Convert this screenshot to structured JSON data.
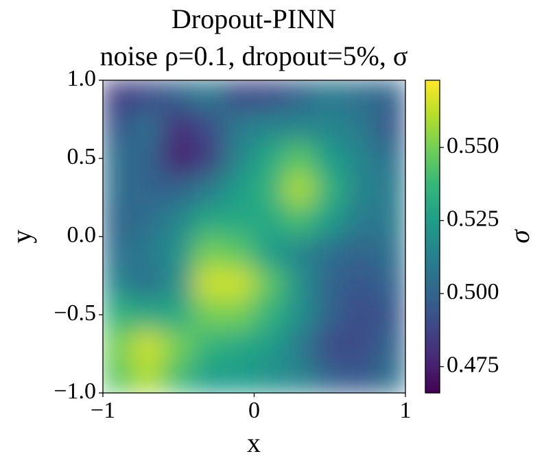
{
  "chart_data": {
    "type": "heatmap",
    "title": "Dropout-PINN",
    "subtitle": "noise ρ=0.1, dropout=5%, σ",
    "x_label": "x",
    "y_label": "y",
    "colorbar_label": "σ",
    "colormap": "viridis",
    "x": [
      -0.9,
      -0.7,
      -0.5,
      -0.3,
      -0.1,
      0.1,
      0.3,
      0.5,
      0.7,
      0.9
    ],
    "y": [
      0.9,
      0.7,
      0.5,
      0.3,
      0.1,
      -0.1,
      -0.3,
      -0.5,
      -0.7,
      -0.9
    ],
    "z": [
      [
        0.485,
        0.49,
        0.5,
        0.51,
        0.49,
        0.49,
        0.5,
        0.51,
        0.505,
        0.5
      ],
      [
        0.495,
        0.505,
        0.48,
        0.49,
        0.51,
        0.515,
        0.515,
        0.515,
        0.51,
        0.495
      ],
      [
        0.505,
        0.5,
        0.475,
        0.485,
        0.515,
        0.53,
        0.545,
        0.525,
        0.515,
        0.505
      ],
      [
        0.505,
        0.5,
        0.5,
        0.51,
        0.525,
        0.535,
        0.56,
        0.535,
        0.515,
        0.51
      ],
      [
        0.5,
        0.505,
        0.515,
        0.53,
        0.53,
        0.53,
        0.54,
        0.525,
        0.51,
        0.51
      ],
      [
        0.505,
        0.51,
        0.52,
        0.55,
        0.545,
        0.525,
        0.515,
        0.505,
        0.5,
        0.505
      ],
      [
        0.515,
        0.505,
        0.52,
        0.565,
        0.565,
        0.545,
        0.52,
        0.5,
        0.495,
        0.5
      ],
      [
        0.535,
        0.53,
        0.53,
        0.55,
        0.55,
        0.535,
        0.52,
        0.5,
        0.49,
        0.495
      ],
      [
        0.55,
        0.565,
        0.55,
        0.535,
        0.53,
        0.525,
        0.51,
        0.49,
        0.49,
        0.5
      ],
      [
        0.545,
        0.56,
        0.54,
        0.525,
        0.525,
        0.52,
        0.515,
        0.5,
        0.495,
        0.505
      ]
    ],
    "xlim": [
      -1,
      1
    ],
    "ylim": [
      -1,
      1
    ],
    "zlim": [
      0.466,
      0.573
    ],
    "xticks": [
      {
        "value": -1,
        "label": "−1"
      },
      0,
      1
    ],
    "yticks": [
      {
        "value": -1,
        "label": "−1.0"
      },
      {
        "value": -0.5,
        "label": "−0.5"
      },
      {
        "value": 0,
        "label": "0.0"
      },
      0.5,
      {
        "value": 1,
        "label": "1.0"
      }
    ],
    "zticks": [
      0.475,
      {
        "value": 0.5,
        "label": "0.500"
      },
      0.525,
      {
        "value": 0.55,
        "label": "0.550"
      }
    ]
  }
}
